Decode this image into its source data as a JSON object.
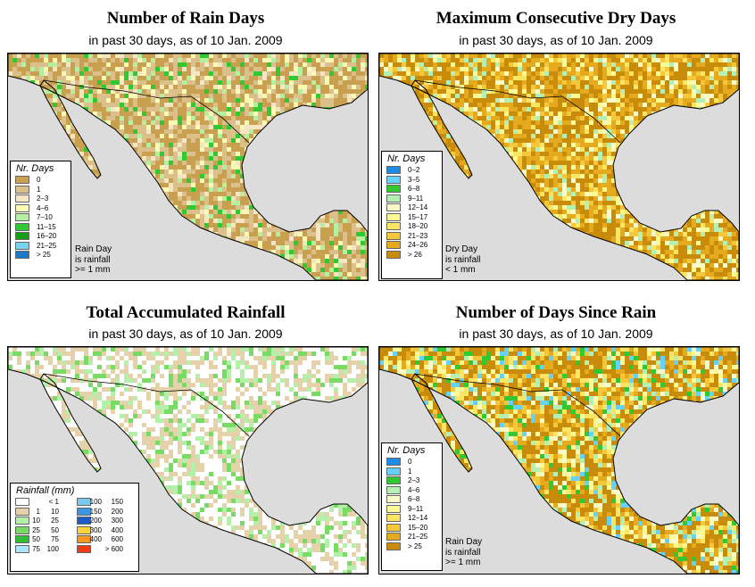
{
  "panels": [
    {
      "title": "Number of Rain Days",
      "subtitle": "in past 30 days, as of  10 Jan. 2009",
      "legend_title": "Nr. Days",
      "legend": [
        {
          "label": "0",
          "color": "#c8a050"
        },
        {
          "label": "1",
          "color": "#dcc08c"
        },
        {
          "label": "2–3",
          "color": "#f5e6c3"
        },
        {
          "label": "4–6",
          "color": "#fafab4"
        },
        {
          "label": "7–10",
          "color": "#b4f0a0"
        },
        {
          "label": "11–15",
          "color": "#32c832"
        },
        {
          "label": "16–20",
          "color": "#14a014"
        },
        {
          "label": "21–25",
          "color": "#78d2f0"
        },
        {
          "label": "> 25",
          "color": "#1e78c8"
        }
      ],
      "note": [
        "Rain Day",
        "is rainfall",
        ">= 1 mm"
      ]
    },
    {
      "title": "Maximum Consecutive Dry Days",
      "subtitle": "in past 30 days, as of  10 Jan. 2009",
      "legend_title": "Nr. Days",
      "legend": [
        {
          "label": "0–2",
          "color": "#1e8ce6"
        },
        {
          "label": "3–5",
          "color": "#64d2fa"
        },
        {
          "label": "6–8",
          "color": "#32c832"
        },
        {
          "label": "9–11",
          "color": "#b4f0b4"
        },
        {
          "label": "12–14",
          "color": "#fafac8"
        },
        {
          "label": "15–17",
          "color": "#fafa96"
        },
        {
          "label": "18–20",
          "color": "#fae664"
        },
        {
          "label": "21–23",
          "color": "#f5c83c"
        },
        {
          "label": "24–26",
          "color": "#e6aa1e"
        },
        {
          "label": "> 26",
          "color": "#c88c0a"
        }
      ],
      "note": [
        "Dry Day",
        "is rainfall",
        "< 1 mm"
      ]
    },
    {
      "title": "Total Accumulated Rainfall",
      "subtitle": "in past 30 days, as of  10 Jan. 2009",
      "legend_title": "Rainfall (mm)",
      "legend_left": [
        {
          "a": "",
          "b": "< 1",
          "color": "#ffffff"
        },
        {
          "a": "1",
          "b": "10",
          "color": "#e6d2aa"
        },
        {
          "a": "10",
          "b": "25",
          "color": "#b4f0aa"
        },
        {
          "a": "25",
          "b": "50",
          "color": "#78dc64"
        },
        {
          "a": "50",
          "b": "75",
          "color": "#32be32"
        },
        {
          "a": "75",
          "b": "100",
          "color": "#aae6fa"
        }
      ],
      "legend_right": [
        {
          "a": "100",
          "b": "150",
          "color": "#78c8f0"
        },
        {
          "a": "150",
          "b": "200",
          "color": "#3c96e6"
        },
        {
          "a": "200",
          "b": "300",
          "color": "#1e5ac8"
        },
        {
          "a": "300",
          "b": "400",
          "color": "#fad23c"
        },
        {
          "a": "400",
          "b": "600",
          "color": "#fa961e"
        },
        {
          "a": "",
          "b": "> 600",
          "color": "#f03c14"
        }
      ]
    },
    {
      "title": "Number of Days Since Rain",
      "subtitle": "in past 30 days, as of  10 Jan. 2009",
      "legend_title": "Nr. Days",
      "legend": [
        {
          "label": "0",
          "color": "#1e8ce6"
        },
        {
          "label": "1",
          "color": "#64d2fa"
        },
        {
          "label": "2–3",
          "color": "#32c832"
        },
        {
          "label": "4–6",
          "color": "#b4f0b4"
        },
        {
          "label": "6–8",
          "color": "#fafac8"
        },
        {
          "label": "9–11",
          "color": "#fafa96"
        },
        {
          "label": "12–14",
          "color": "#fae664"
        },
        {
          "label": "15–20",
          "color": "#f5c83c"
        },
        {
          "label": "21–25",
          "color": "#e6aa1e"
        },
        {
          "label": "> 25",
          "color": "#c88c0a"
        }
      ],
      "note": [
        "Rain Day",
        "is rainfall",
        ">= 1 mm"
      ]
    }
  ],
  "colors": {
    "ocean": "#dcdcdc",
    "border": "#000000"
  }
}
